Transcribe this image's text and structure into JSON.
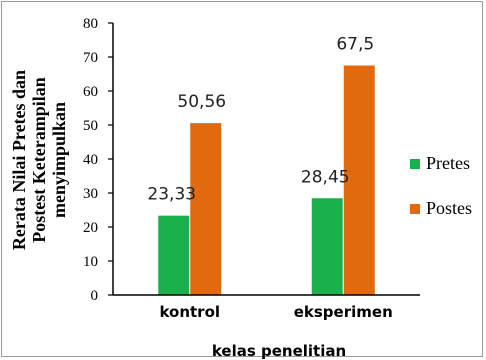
{
  "chart_data": {
    "type": "bar",
    "categories": [
      "kontrol",
      "eksperimen"
    ],
    "series": [
      {
        "name": "Pretes",
        "values": [
          23.33,
          28.45
        ],
        "labels": [
          "23,33",
          "28,45"
        ],
        "color": "#1ab04c"
      },
      {
        "name": "Postes",
        "values": [
          50.56,
          67.5
        ],
        "labels": [
          "50,56",
          "67,5"
        ],
        "color": "#e3690e"
      }
    ],
    "xlabel": "kelas penelitian",
    "ylabel_lines": [
      "Rerata Nilai Pretes dan",
      "Postest Keterampilan",
      "menyimpulkan"
    ],
    "ylim": [
      0,
      80
    ],
    "yticks": [
      0,
      10,
      20,
      30,
      40,
      50,
      60,
      70,
      80
    ],
    "grid": false,
    "legend_position": "right"
  }
}
